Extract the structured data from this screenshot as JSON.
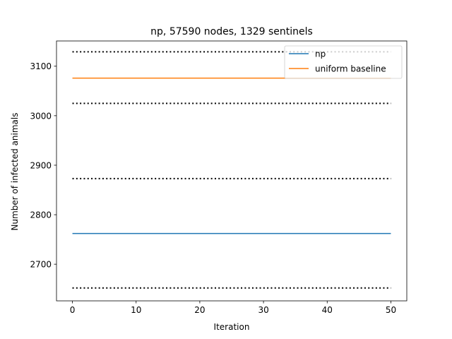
{
  "chart_data": {
    "type": "line",
    "title": "np, 57590 nodes, 1329 sentinels",
    "xlabel": "Iteration",
    "ylabel": "Number of infected animals",
    "xlim": [
      -2.5,
      52.5
    ],
    "ylim": [
      2626,
      3151
    ],
    "xticks": [
      0,
      10,
      20,
      30,
      40,
      50
    ],
    "yticks": [
      2700,
      2800,
      2900,
      3000,
      3100
    ],
    "grid": false,
    "legend": "top-right",
    "series": [
      {
        "name": "np",
        "color": "#1f77b4",
        "x": [
          0,
          50
        ],
        "y": [
          2762,
          2762
        ]
      },
      {
        "name": "uniform baseline",
        "color": "#ff7f0e",
        "x": [
          0,
          50
        ],
        "y": [
          3076,
          3076
        ]
      }
    ],
    "reference_lines": [
      {
        "style": "dotted",
        "color": "#000000",
        "x": [
          0,
          50
        ],
        "y": 3129
      },
      {
        "style": "dotted",
        "color": "#000000",
        "x": [
          0,
          50
        ],
        "y": 3025
      },
      {
        "style": "dotted",
        "color": "#000000",
        "x": [
          0,
          50
        ],
        "y": 2873
      },
      {
        "style": "dotted",
        "color": "#000000",
        "x": [
          0,
          50
        ],
        "y": 2652
      }
    ]
  }
}
